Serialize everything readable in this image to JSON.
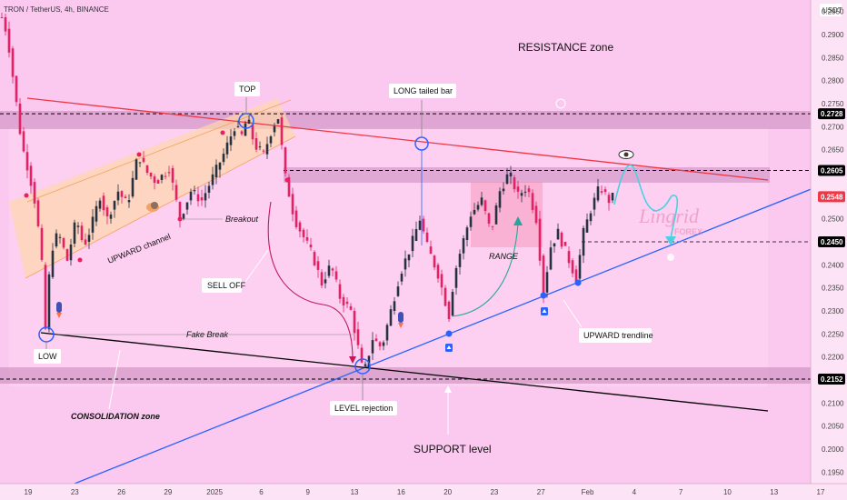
{
  "header": {
    "symbol": "TRON / TetherUS, 4h, BINANCE",
    "currency": "USDT"
  },
  "chart_data": {
    "type": "candlestick",
    "title": "TRON / TetherUS, 4h, BINANCE",
    "ylim": [
      0.1925,
      0.2975
    ],
    "y_ticks": [
      "0.2950",
      "0.2900",
      "0.2850",
      "0.2800",
      "0.2750",
      "0.2700",
      "0.2650",
      "0.2600",
      "0.2550",
      "0.2500",
      "0.2450",
      "0.2400",
      "0.2350",
      "0.2300",
      "0.2250",
      "0.2200",
      "0.2150",
      "0.2100",
      "0.2050",
      "0.2000",
      "0.1950"
    ],
    "x_ticks": [
      "19",
      "23",
      "26",
      "29",
      "2025",
      "6",
      "9",
      "13",
      "16",
      "20",
      "23",
      "27",
      "Feb",
      "4",
      "7",
      "10",
      "13",
      "17"
    ],
    "price_labels": [
      {
        "text": "0.2728",
        "value": 0.2728,
        "color": "#000000"
      },
      {
        "text": "0.2605",
        "value": 0.2605,
        "color": "#000000"
      },
      {
        "text": "0.2548",
        "value": 0.2548,
        "color": "#f23645"
      },
      {
        "text": "0.2450",
        "value": 0.245,
        "color": "#000000"
      },
      {
        "text": "0.2152",
        "value": 0.2152,
        "color": "#000000"
      }
    ],
    "price_path": [
      {
        "x": 0,
        "y": 0.295
      },
      {
        "x": 8,
        "y": 0.29
      },
      {
        "x": 16,
        "y": 0.278
      },
      {
        "x": 24,
        "y": 0.266
      },
      {
        "x": 32,
        "y": 0.26
      },
      {
        "x": 40,
        "y": 0.252
      },
      {
        "x": 46,
        "y": 0.24
      },
      {
        "x": 50,
        "y": 0.226
      },
      {
        "x": 56,
        "y": 0.243
      },
      {
        "x": 64,
        "y": 0.247
      },
      {
        "x": 74,
        "y": 0.241
      },
      {
        "x": 84,
        "y": 0.25
      },
      {
        "x": 92,
        "y": 0.244
      },
      {
        "x": 100,
        "y": 0.248
      },
      {
        "x": 110,
        "y": 0.255
      },
      {
        "x": 118,
        "y": 0.25
      },
      {
        "x": 130,
        "y": 0.256
      },
      {
        "x": 140,
        "y": 0.253
      },
      {
        "x": 152,
        "y": 0.264
      },
      {
        "x": 162,
        "y": 0.26
      },
      {
        "x": 172,
        "y": 0.258
      },
      {
        "x": 186,
        "y": 0.261
      },
      {
        "x": 198,
        "y": 0.25
      },
      {
        "x": 210,
        "y": 0.256
      },
      {
        "x": 222,
        "y": 0.254
      },
      {
        "x": 234,
        "y": 0.259
      },
      {
        "x": 246,
        "y": 0.264
      },
      {
        "x": 258,
        "y": 0.27
      },
      {
        "x": 266,
        "y": 0.268
      },
      {
        "x": 272,
        "y": 0.272
      },
      {
        "x": 280,
        "y": 0.266
      },
      {
        "x": 290,
        "y": 0.264
      },
      {
        "x": 300,
        "y": 0.27
      },
      {
        "x": 306,
        "y": 0.272
      },
      {
        "x": 314,
        "y": 0.259
      },
      {
        "x": 324,
        "y": 0.25
      },
      {
        "x": 334,
        "y": 0.246
      },
      {
        "x": 344,
        "y": 0.242
      },
      {
        "x": 354,
        "y": 0.236
      },
      {
        "x": 364,
        "y": 0.24
      },
      {
        "x": 374,
        "y": 0.233
      },
      {
        "x": 386,
        "y": 0.23
      },
      {
        "x": 392,
        "y": 0.224
      },
      {
        "x": 400,
        "y": 0.216
      },
      {
        "x": 410,
        "y": 0.224
      },
      {
        "x": 420,
        "y": 0.222
      },
      {
        "x": 430,
        "y": 0.23
      },
      {
        "x": 440,
        "y": 0.238
      },
      {
        "x": 452,
        "y": 0.244
      },
      {
        "x": 462,
        "y": 0.25
      },
      {
        "x": 470,
        "y": 0.244
      },
      {
        "x": 482,
        "y": 0.238
      },
      {
        "x": 494,
        "y": 0.229
      },
      {
        "x": 500,
        "y": 0.238
      },
      {
        "x": 508,
        "y": 0.244
      },
      {
        "x": 518,
        "y": 0.251
      },
      {
        "x": 530,
        "y": 0.254
      },
      {
        "x": 540,
        "y": 0.247
      },
      {
        "x": 550,
        "y": 0.256
      },
      {
        "x": 560,
        "y": 0.26
      },
      {
        "x": 570,
        "y": 0.255
      },
      {
        "x": 580,
        "y": 0.257
      },
      {
        "x": 590,
        "y": 0.25
      },
      {
        "x": 598,
        "y": 0.234
      },
      {
        "x": 606,
        "y": 0.244
      },
      {
        "x": 614,
        "y": 0.247
      },
      {
        "x": 622,
        "y": 0.243
      },
      {
        "x": 634,
        "y": 0.237
      },
      {
        "x": 642,
        "y": 0.247
      },
      {
        "x": 650,
        "y": 0.252
      },
      {
        "x": 660,
        "y": 0.257
      },
      {
        "x": 670,
        "y": 0.254
      },
      {
        "x": 676,
        "y": 0.255
      }
    ],
    "levels": [
      {
        "name": "resistance-line-0.2728",
        "value": 0.2728
      },
      {
        "name": "range-high-line-0.2605",
        "value": 0.2605
      },
      {
        "name": "target-line-0.2450",
        "value": 0.245
      },
      {
        "name": "support-line-0.2152",
        "value": 0.2152
      }
    ]
  },
  "annotations": {
    "resistance_zone": "RESISTANCE zone",
    "top": "TOP",
    "long_tailed_bar": "LONG tailed bar",
    "upward_channel": "UPWARD channel",
    "breakout": "Breakout",
    "sell_off": "SELL OFF",
    "range": "RANGE",
    "low": "LOW",
    "fake_break": "Fake Break",
    "upward_trendline": "UPWARD trendline",
    "consolidation_zone": "CONSOLIDATION zone",
    "level_rejection": "LEVEL rejection",
    "support_level": "SUPPORT level"
  },
  "watermark": {
    "line1": "Lingrid",
    "line2": "FOREX"
  },
  "colors": {
    "background": "#fbc8f0",
    "up_candle": "#26323f",
    "down_candle": "#e91e63",
    "resistance_line": "#f23645",
    "trendline": "#2962ff",
    "support_line": "#000000",
    "projection": "#4dd0e1",
    "curve_arrow": "#c2185b",
    "channel": "#ffd8a8"
  }
}
